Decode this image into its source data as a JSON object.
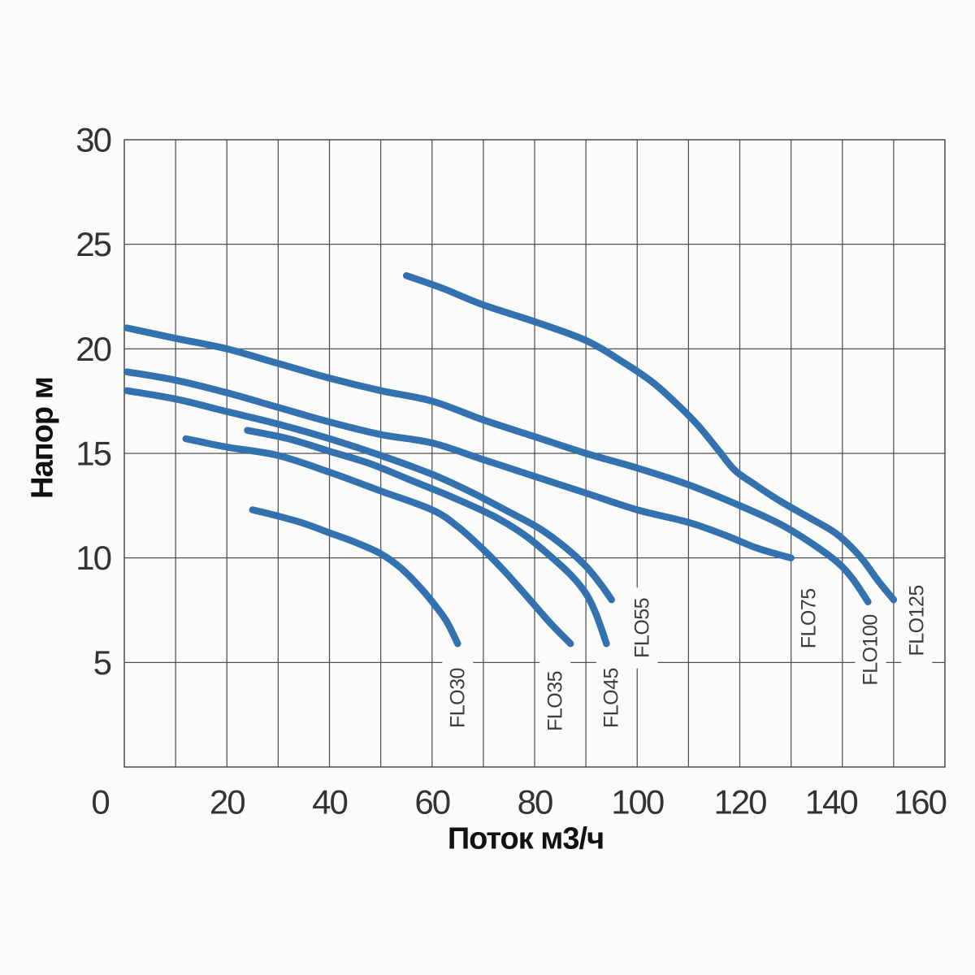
{
  "page": {
    "background": "#fbfbfa"
  },
  "chart_data": {
    "type": "line",
    "title": "",
    "xlabel": "Поток м3/ч",
    "ylabel": "Напор м",
    "xlim": [
      0,
      160
    ],
    "ylim": [
      0,
      30
    ],
    "x_ticks": [
      0,
      20,
      40,
      60,
      80,
      100,
      120,
      140,
      160
    ],
    "y_ticks": [
      5,
      10,
      15,
      20,
      25,
      30
    ],
    "x_grid_step": 10,
    "y_grid_step": 5,
    "grid": true,
    "legend_position": "labels-at-curve-ends",
    "colors": {
      "curve": "#3372ae",
      "grid": "#4f4f4f",
      "tick_text": "#333333",
      "axis_title_text": "#111111",
      "curve_label_text": "#3c3c3c",
      "background": "#fbfbfa"
    },
    "series": [
      {
        "name": "FLO30",
        "points": [
          [
            25,
            12.3
          ],
          [
            30,
            12.0
          ],
          [
            35,
            11.65
          ],
          [
            40,
            11.2
          ],
          [
            45,
            10.75
          ],
          [
            50,
            10.2
          ],
          [
            54,
            9.5
          ],
          [
            58,
            8.5
          ],
          [
            61,
            7.6
          ],
          [
            63,
            6.9
          ],
          [
            65,
            5.9
          ]
        ],
        "label_at": {
          "x": 65,
          "y": 3.3
        }
      },
      {
        "name": "FLO35",
        "points": [
          [
            12,
            15.7
          ],
          [
            20,
            15.3
          ],
          [
            30,
            14.9
          ],
          [
            40,
            14.1
          ],
          [
            50,
            13.2
          ],
          [
            60,
            12.3
          ],
          [
            65,
            11.5
          ],
          [
            70,
            10.4
          ],
          [
            74,
            9.4
          ],
          [
            78,
            8.3
          ],
          [
            83,
            6.9
          ],
          [
            87,
            5.9
          ]
        ],
        "label_at": {
          "x": 84,
          "y": 3.15
        }
      },
      {
        "name": "FLO45",
        "points": [
          [
            24,
            16.1
          ],
          [
            32,
            15.7
          ],
          [
            40,
            15.1
          ],
          [
            48,
            14.5
          ],
          [
            56,
            13.7
          ],
          [
            64,
            12.9
          ],
          [
            72,
            12.0
          ],
          [
            78,
            11.1
          ],
          [
            83,
            10.1
          ],
          [
            87,
            9.2
          ],
          [
            90,
            8.3
          ],
          [
            92,
            7.3
          ],
          [
            94,
            5.9
          ]
        ],
        "label_at": {
          "x": 95,
          "y": 3.3
        }
      },
      {
        "name": "FLO55",
        "points": [
          [
            0.5,
            18.0
          ],
          [
            10,
            17.6
          ],
          [
            20,
            17.0
          ],
          [
            30,
            16.4
          ],
          [
            40,
            15.7
          ],
          [
            50,
            14.9
          ],
          [
            60,
            14.0
          ],
          [
            68,
            13.1
          ],
          [
            75,
            12.2
          ],
          [
            81,
            11.4
          ],
          [
            86,
            10.5
          ],
          [
            90,
            9.6
          ],
          [
            93,
            8.7
          ],
          [
            95,
            8.0
          ]
        ],
        "label_at": {
          "x": 101,
          "y": 6.65
        }
      },
      {
        "name": "FLO75",
        "points": [
          [
            0.5,
            18.9
          ],
          [
            10,
            18.5
          ],
          [
            20,
            17.9
          ],
          [
            30,
            17.2
          ],
          [
            40,
            16.5
          ],
          [
            50,
            15.9
          ],
          [
            60,
            15.5
          ],
          [
            70,
            14.7
          ],
          [
            80,
            13.9
          ],
          [
            90,
            13.1
          ],
          [
            100,
            12.3
          ],
          [
            110,
            11.7
          ],
          [
            117,
            11.1
          ],
          [
            123,
            10.5
          ],
          [
            127,
            10.2
          ],
          [
            130,
            10.0
          ]
        ],
        "label_at": {
          "x": 133.5,
          "y": 7.1
        }
      },
      {
        "name": "FLO100",
        "points": [
          [
            0.5,
            21.0
          ],
          [
            10,
            20.5
          ],
          [
            20,
            20.0
          ],
          [
            30,
            19.3
          ],
          [
            40,
            18.6
          ],
          [
            50,
            18.0
          ],
          [
            60,
            17.5
          ],
          [
            70,
            16.6
          ],
          [
            80,
            15.8
          ],
          [
            90,
            15.0
          ],
          [
            100,
            14.3
          ],
          [
            110,
            13.5
          ],
          [
            120,
            12.5
          ],
          [
            128,
            11.6
          ],
          [
            134,
            10.7
          ],
          [
            139,
            9.8
          ],
          [
            142,
            9.0
          ],
          [
            145,
            7.9
          ]
        ],
        "label_at": {
          "x": 145.5,
          "y": 5.6
        }
      },
      {
        "name": "FLO125",
        "points": [
          [
            55,
            23.5
          ],
          [
            62,
            22.9
          ],
          [
            70,
            22.1
          ],
          [
            80,
            21.3
          ],
          [
            90,
            20.4
          ],
          [
            97,
            19.4
          ],
          [
            103,
            18.4
          ],
          [
            108,
            17.3
          ],
          [
            112,
            16.3
          ],
          [
            116,
            15.1
          ],
          [
            119,
            14.2
          ],
          [
            123,
            13.5
          ],
          [
            128,
            12.7
          ],
          [
            133,
            12.0
          ],
          [
            138,
            11.3
          ],
          [
            141,
            10.7
          ],
          [
            144,
            9.9
          ],
          [
            147,
            8.9
          ],
          [
            150,
            8.0
          ]
        ],
        "label_at": {
          "x": 154.5,
          "y": 7.0
        }
      }
    ]
  }
}
